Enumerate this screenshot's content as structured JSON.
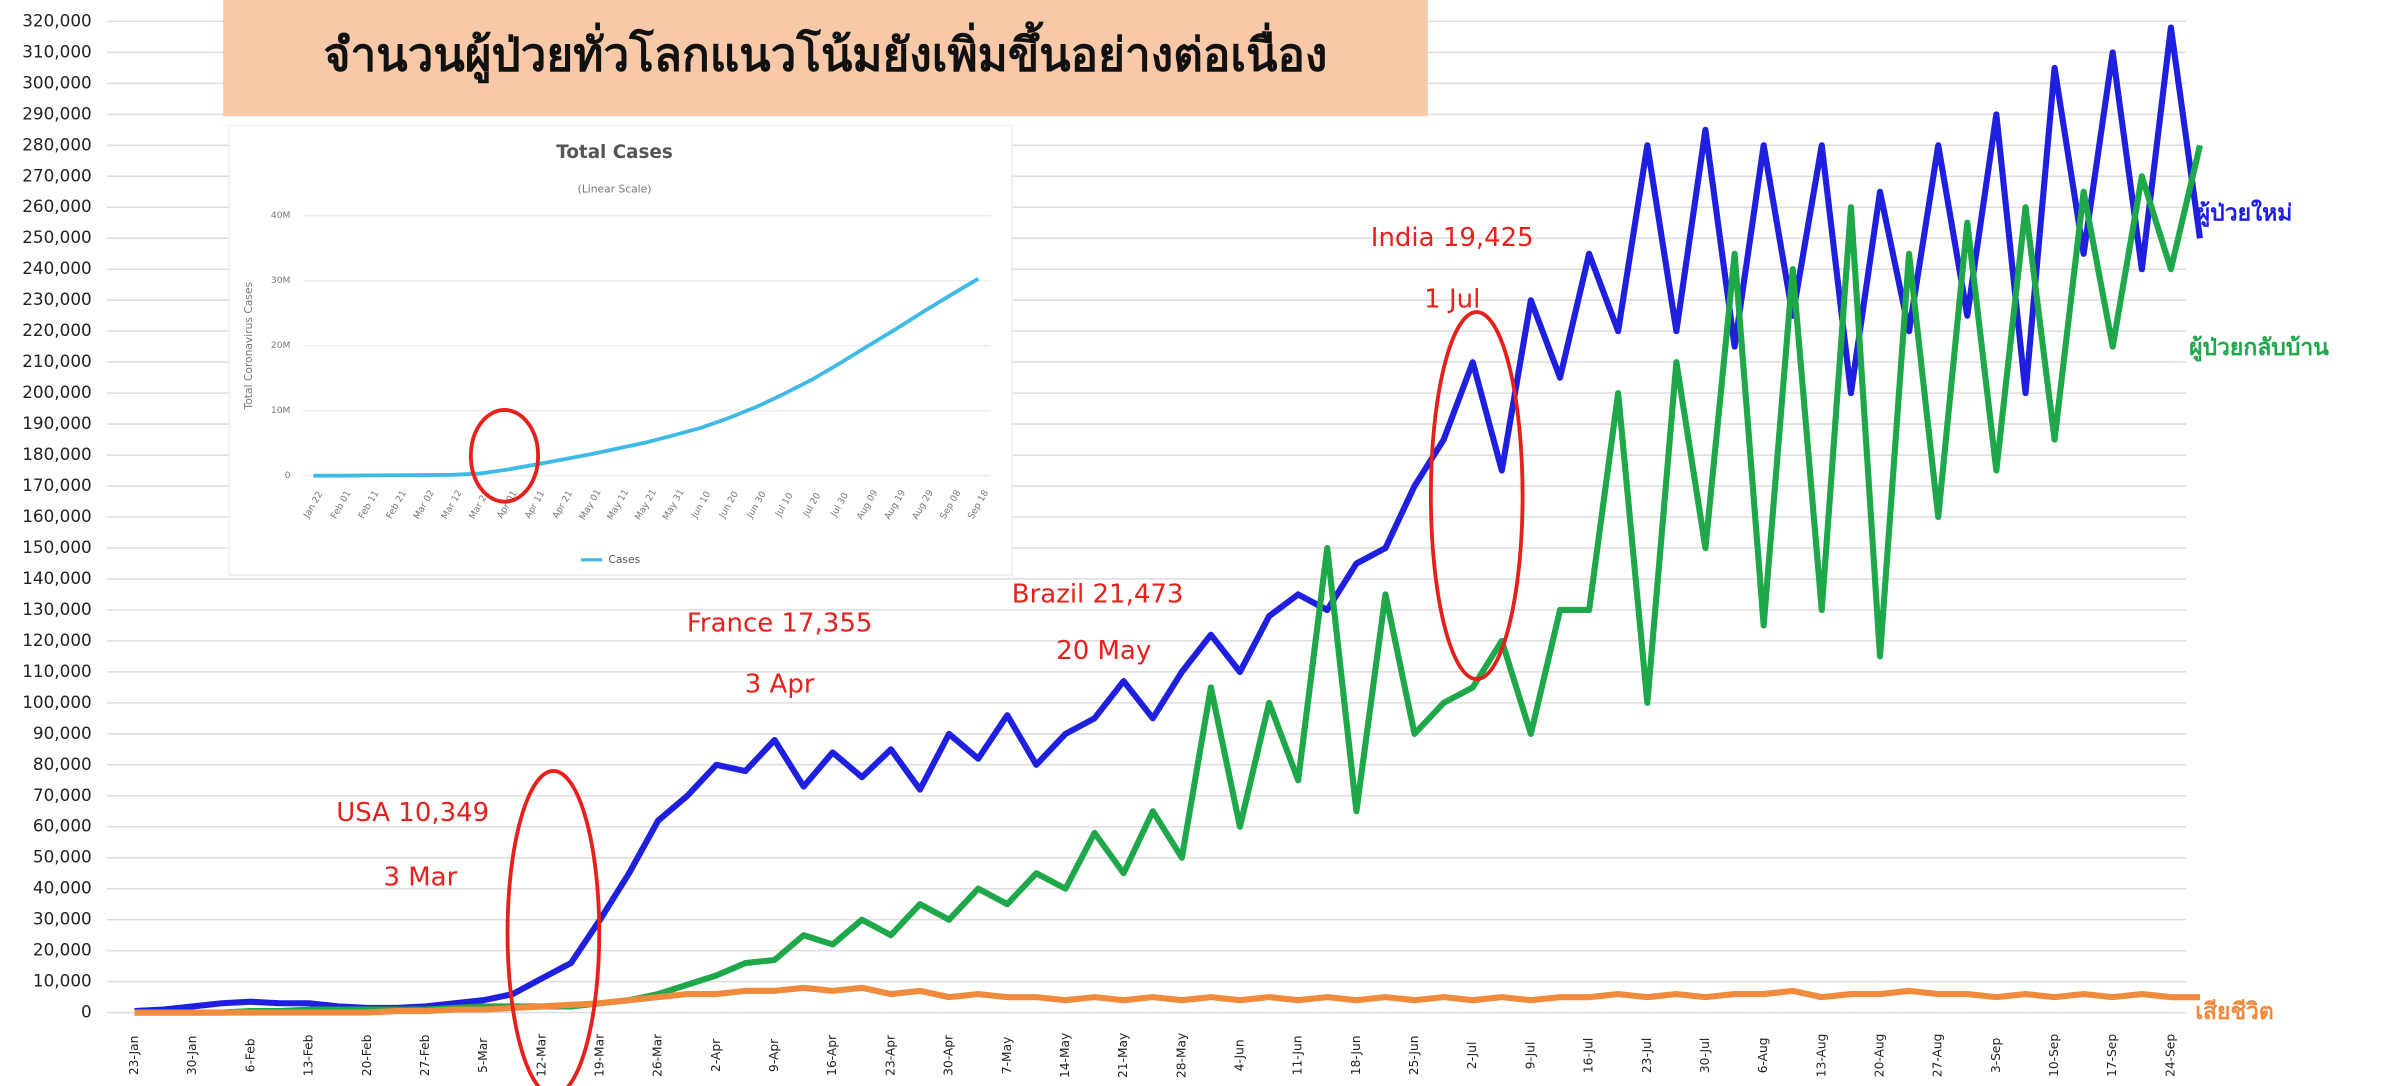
{
  "chart_data": [
    {
      "type": "line",
      "title": "จำนวนผู้ป่วยทั่วโลกแนวโน้มยังเพิ่มขึ้นอย่างต่อเนื่อง",
      "categories": [
        "23-Jan",
        null,
        "30-Jan",
        null,
        "6-Feb",
        null,
        "13-Feb",
        null,
        "20-Feb",
        null,
        "27-Feb",
        null,
        "5-Mar",
        null,
        "12-Mar",
        null,
        "19-Mar",
        null,
        "26-Mar",
        null,
        "2-Apr",
        null,
        "9-Apr",
        null,
        "16-Apr",
        null,
        "23-Apr",
        null,
        "30-Apr",
        null,
        "7-May",
        null,
        "14-May",
        null,
        "21-May",
        null,
        "28-May",
        null,
        "4-Jun",
        null,
        "11-Jun",
        null,
        "18-Jun",
        null,
        "25-Jun",
        null,
        "2-Jul",
        null,
        "9-Jul",
        null,
        "16-Jul",
        null,
        "23-Jul",
        null,
        "30-Jul",
        null,
        "6-Aug",
        null,
        "13-Aug",
        null,
        "20-Aug",
        null,
        "27-Aug",
        null,
        "3-Sep",
        null,
        "10-Sep",
        null,
        "17-Sep",
        null,
        "24-Sep",
        null
      ],
      "series": [
        {
          "name": "ผู้ป่วยใหม่",
          "color": "#1f1fe0",
          "values": [
            500,
            1000,
            2000,
            3000,
            3500,
            3000,
            3000,
            2000,
            1500,
            1500,
            2000,
            3000,
            4000,
            6000,
            11000,
            16000,
            30000,
            45000,
            62000,
            70000,
            80000,
            78000,
            88000,
            73000,
            84000,
            76000,
            85000,
            72000,
            90000,
            82000,
            96000,
            80000,
            90000,
            95000,
            107000,
            95000,
            110000,
            122000,
            110000,
            128000,
            135000,
            130000,
            145000,
            150000,
            170000,
            185000,
            210000,
            175000,
            230000,
            205000,
            245000,
            220000,
            280000,
            220000,
            285000,
            215000,
            280000,
            225000,
            280000,
            200000,
            265000,
            220000,
            280000,
            225000,
            290000,
            200000,
            305000,
            245000,
            310000,
            240000,
            318000,
            250000
          ]
        },
        {
          "name": "ผู้ป่วยกลับบ้าน",
          "color": "#1fa84a",
          "values": [
            0,
            0,
            0,
            0,
            500,
            500,
            1000,
            1000,
            1000,
            1000,
            1000,
            1500,
            2000,
            2000,
            2000,
            2000,
            3000,
            4000,
            6000,
            9000,
            12000,
            16000,
            17000,
            25000,
            22000,
            30000,
            25000,
            35000,
            30000,
            40000,
            35000,
            45000,
            40000,
            58000,
            45000,
            65000,
            50000,
            105000,
            60000,
            100000,
            75000,
            150000,
            65000,
            135000,
            90000,
            100000,
            105000,
            120000,
            90000,
            130000,
            130000,
            200000,
            100000,
            210000,
            150000,
            245000,
            125000,
            240000,
            130000,
            260000,
            115000,
            245000,
            160000,
            255000,
            175000,
            260000,
            185000,
            265000,
            215000,
            270000,
            240000,
            280000
          ]
        },
        {
          "name": "เสียชีวิต",
          "color": "#f08a3c",
          "values": [
            0,
            0,
            0,
            0,
            0,
            0,
            0,
            0,
            0,
            500,
            500,
            1000,
            1000,
            1500,
            2000,
            2500,
            3000,
            4000,
            5000,
            6000,
            6000,
            7000,
            7000,
            8000,
            7000,
            8000,
            6000,
            7000,
            5000,
            6000,
            5000,
            5000,
            4000,
            5000,
            4000,
            5000,
            4000,
            5000,
            4000,
            5000,
            4000,
            5000,
            4000,
            5000,
            4000,
            5000,
            4000,
            5000,
            4000,
            5000,
            5000,
            6000,
            5000,
            6000,
            5000,
            6000,
            6000,
            7000,
            5000,
            6000,
            6000,
            7000,
            6000,
            6000,
            5000,
            6000,
            5000,
            6000,
            5000,
            6000,
            5000,
            5000
          ]
        }
      ],
      "ylim": [
        0,
        320000
      ],
      "yticks": [
        0,
        {
          "value": 10000,
          "label": "10,000"
        },
        {
          "value": 20000,
          "label": "20,000"
        },
        {
          "value": 30000,
          "label": "30,000"
        },
        {
          "value": 40000,
          "label": "40,000"
        },
        {
          "value": 50000,
          "label": "50,000"
        },
        {
          "value": 60000,
          "label": "60,000"
        },
        {
          "value": 70000,
          "label": "70,000"
        },
        {
          "value": 80000,
          "label": "80,000"
        },
        {
          "value": 90000,
          "label": "90,000"
        },
        {
          "value": 100000,
          "label": "100,000"
        },
        {
          "value": 110000,
          "label": "110,000"
        },
        {
          "value": 120000,
          "label": "120,000"
        },
        {
          "value": 130000,
          "label": "130,000"
        },
        {
          "value": 140000,
          "label": "140,000"
        },
        {
          "value": 150000,
          "label": "150,000"
        },
        {
          "value": 160000,
          "label": "160,000"
        },
        {
          "value": 170000,
          "label": "170,000"
        },
        {
          "value": 180000,
          "label": "180,000"
        },
        {
          "value": 190000,
          "label": "190,000"
        },
        {
          "value": 200000,
          "label": "200,000"
        },
        {
          "value": 210000,
          "label": "210,000"
        },
        {
          "value": 220000,
          "label": "220,000"
        },
        {
          "value": 230000,
          "label": "230,000"
        },
        {
          "value": 240000,
          "label": "240,000"
        },
        {
          "value": 250000,
          "label": "250,000"
        },
        {
          "value": 260000,
          "label": "260,000"
        },
        {
          "value": 270000,
          "label": "270,000"
        },
        {
          "value": 280000,
          "label": "280,000"
        },
        {
          "value": 290000,
          "label": "290,000"
        },
        {
          "value": 300000,
          "label": "300,000"
        },
        {
          "value": 310000,
          "label": "310,000"
        },
        {
          "value": 320000,
          "label": "320,000"
        }
      ],
      "grid": true,
      "annotations": [
        "USA 10,349",
        "3 Mar",
        "France 17,355",
        "3 Apr",
        "Brazil 21,473",
        "20 May",
        "India 19,425",
        "1 Jul"
      ]
    },
    {
      "type": "line",
      "title": "Total Cases",
      "subtitle": "(Linear Scale)",
      "ylabel": "Total Coronavirus Cases",
      "categories": [
        "Jan 22",
        "Feb 01",
        "Feb 11",
        "Feb 21",
        "Mar 02",
        "Mar 12",
        "Mar 22",
        "Apr 01",
        "Apr 11",
        "Apr 21",
        "May 01",
        "May 11",
        "May 21",
        "May 31",
        "Jun 10",
        "Jun 20",
        "Jun 30",
        "Jul 10",
        "Jul 20",
        "Jul 30",
        "Aug 09",
        "Aug 19",
        "Aug 29",
        "Sep 08",
        "Sep 18"
      ],
      "series": [
        {
          "name": "Cases",
          "color": "#3fb9e6",
          "values": [
            0,
            0,
            50000,
            80000,
            90000,
            130000,
            340000,
            930000,
            1700000,
            2500000,
            3300000,
            4200000,
            5100000,
            6200000,
            7400000,
            8900000,
            10600000,
            12600000,
            14800000,
            17300000,
            19900000,
            22500000,
            25200000,
            27800000,
            30300000
          ]
        }
      ],
      "ylim": [
        0,
        40000000
      ],
      "yticks": [
        0,
        {
          "value": 10000000,
          "label": "10M"
        },
        {
          "value": 20000000,
          "label": "20M"
        },
        {
          "value": 30000000,
          "label": "30M"
        },
        {
          "value": 40000000,
          "label": "40M"
        }
      ],
      "grid": true
    }
  ]
}
